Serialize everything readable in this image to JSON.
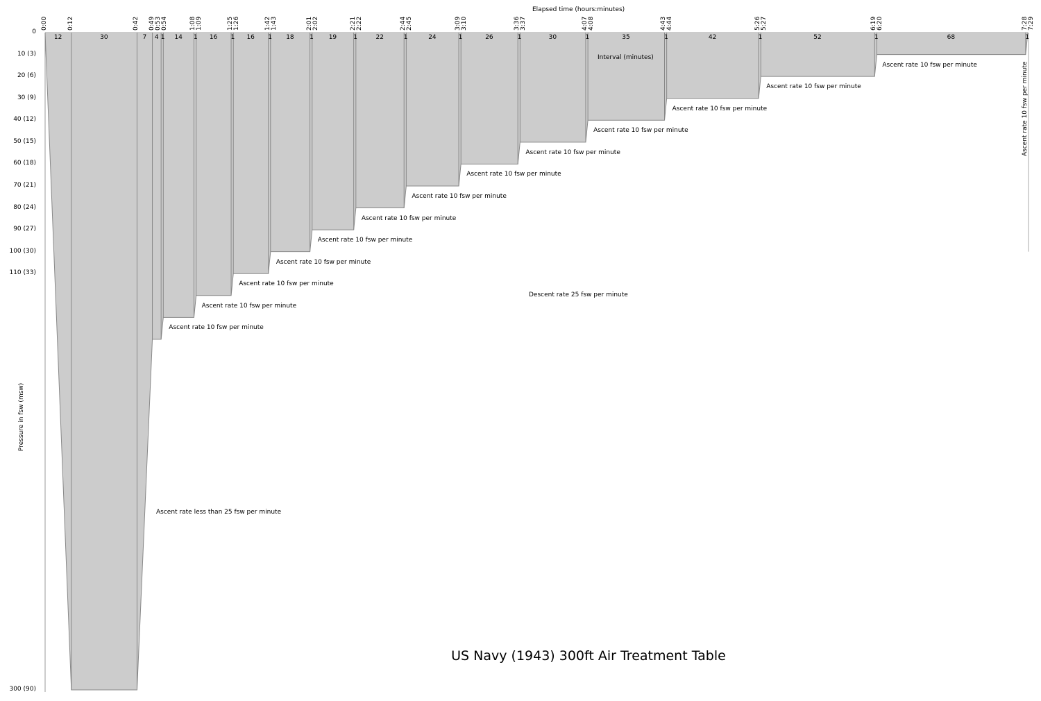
{
  "chart_data": {
    "type": "area",
    "title": "US Navy (1943) 300ft Air Treatment Table",
    "xlabel": "Elapsed time (hours:minutes)",
    "ylabel": "Pressure in fsw (msw)",
    "interval_label": "Interval (minutes)",
    "y_inverted": true,
    "ylim": [
      0,
      300
    ],
    "xlim_minutes": [
      0,
      449
    ],
    "colors": {
      "fill": "#cccccc",
      "stroke": "#888888"
    },
    "profile": {
      "time_min": [
        0,
        12,
        42,
        49,
        53,
        54,
        68,
        69,
        85,
        86,
        102,
        103,
        121,
        122,
        141,
        142,
        164,
        165,
        189,
        190,
        216,
        217,
        247,
        248,
        283,
        284,
        326,
        327,
        379,
        380,
        448,
        449
      ],
      "depth_fsw": [
        0,
        300,
        300,
        140,
        140,
        130,
        130,
        120,
        120,
        110,
        110,
        100,
        100,
        90,
        90,
        80,
        80,
        70,
        70,
        60,
        60,
        50,
        50,
        40,
        40,
        30,
        30,
        20,
        20,
        10,
        10,
        0
      ]
    },
    "interval_labels": [
      "12",
      "30",
      "7",
      "4",
      "1",
      "14",
      "1",
      "16",
      "1",
      "16",
      "1",
      "18",
      "1",
      "19",
      "1",
      "22",
      "1",
      "24",
      "1",
      "26",
      "1",
      "30",
      "1",
      "35",
      "1",
      "42",
      "1",
      "52",
      "1",
      "68",
      "1"
    ],
    "y_ticks": [
      {
        "v": 0,
        "label": "0"
      },
      {
        "v": 10,
        "label": "10 (3)"
      },
      {
        "v": 20,
        "label": "20 (6)"
      },
      {
        "v": 30,
        "label": "30 (9)"
      },
      {
        "v": 40,
        "label": "40 (12)"
      },
      {
        "v": 50,
        "label": "50 (15)"
      },
      {
        "v": 60,
        "label": "60 (18)"
      },
      {
        "v": 70,
        "label": "70 (21)"
      },
      {
        "v": 80,
        "label": "80 (24)"
      },
      {
        "v": 90,
        "label": "90 (27)"
      },
      {
        "v": 100,
        "label": "100 (30)"
      },
      {
        "v": 110,
        "label": "110 (33)"
      },
      {
        "v": 300,
        "label": "300 (90)"
      }
    ],
    "x_tick_groups": [
      [
        "0:00"
      ],
      [
        "0:12"
      ],
      [
        "0:42"
      ],
      [
        "0:49",
        "0:53",
        "0:54"
      ],
      [
        "1:08",
        "1:09"
      ],
      [
        "1:25",
        "1:26"
      ],
      [
        "1:42",
        "1:43"
      ],
      [
        "2:01",
        "2:02"
      ],
      [
        "2:21",
        "2:22"
      ],
      [
        "2:44",
        "2:45"
      ],
      [
        "3:09",
        "3:10"
      ],
      [
        "3:36",
        "3:37"
      ],
      [
        "4:07",
        "4:08"
      ],
      [
        "4:43",
        "4:44"
      ],
      [
        "5:26",
        "5:27"
      ],
      [
        "6:19",
        "6:20"
      ],
      [
        "7:28",
        "7:29"
      ]
    ],
    "annotations": {
      "descent": "Descent rate 25 fsw per minute",
      "first_ascent": "Ascent rate less than 25 fsw per minute",
      "stop_ascent": "Ascent rate 10 fsw per minute",
      "final_ascent": "Ascent rate 10 fsw per minute"
    }
  }
}
